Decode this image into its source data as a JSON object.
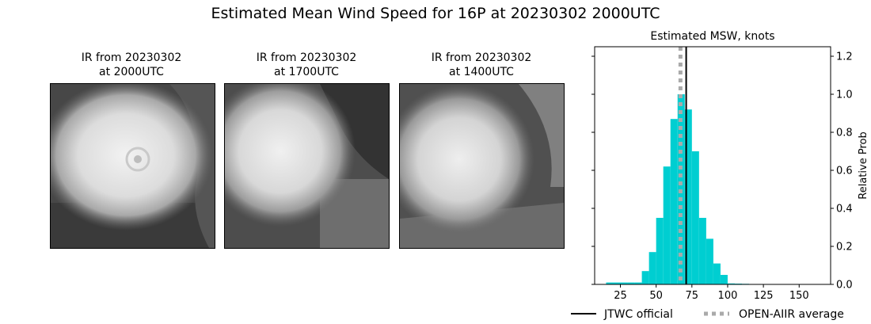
{
  "page": {
    "title": "Estimated Mean Wind Speed for 16P at 20230302 2000UTC"
  },
  "ir_panels": [
    {
      "line1": "IR from 20230302",
      "line2": "at 2000UTC"
    },
    {
      "line1": "IR from 20230302",
      "line2": "at 1700UTC"
    },
    {
      "line1": "IR from 20230302",
      "line2": "at 1400UTC"
    }
  ],
  "chart_data": {
    "type": "bar",
    "title": "Estimated MSW, knots",
    "xlabel": "",
    "ylabel": "Relative Prob",
    "xlim": [
      7,
      172
    ],
    "ylim": [
      0,
      1.25
    ],
    "x_ticks": [
      25,
      50,
      75,
      100,
      125,
      150
    ],
    "y_ticks": [
      0.0,
      0.2,
      0.4,
      0.6,
      0.8,
      1.0,
      1.2
    ],
    "y_tick_labels": [
      "0.0",
      "0.2",
      "0.4",
      "0.6",
      "0.8",
      "1.0",
      "1.2"
    ],
    "y_axis_side": "right",
    "bin_width": 5,
    "bins": [
      {
        "x": 17.5,
        "value": 0.01
      },
      {
        "x": 22.5,
        "value": 0.01
      },
      {
        "x": 27.5,
        "value": 0.01
      },
      {
        "x": 32.5,
        "value": 0.01
      },
      {
        "x": 37.5,
        "value": 0.01
      },
      {
        "x": 42.5,
        "value": 0.07
      },
      {
        "x": 47.5,
        "value": 0.17
      },
      {
        "x": 52.5,
        "value": 0.35
      },
      {
        "x": 57.5,
        "value": 0.62
      },
      {
        "x": 62.5,
        "value": 0.87
      },
      {
        "x": 67.5,
        "value": 1.0
      },
      {
        "x": 72.5,
        "value": 0.92
      },
      {
        "x": 77.5,
        "value": 0.7
      },
      {
        "x": 82.5,
        "value": 0.35
      },
      {
        "x": 87.5,
        "value": 0.24
      },
      {
        "x": 92.5,
        "value": 0.11
      },
      {
        "x": 97.5,
        "value": 0.05
      },
      {
        "x": 102.5,
        "value": 0.005
      },
      {
        "x": 107.5,
        "value": 0.004
      },
      {
        "x": 112.5,
        "value": 0.003
      },
      {
        "x": 117.5,
        "value": 0.002
      },
      {
        "x": 122.5,
        "value": 0.002
      },
      {
        "x": 127.5,
        "value": 0.002
      },
      {
        "x": 132.5,
        "value": 0.001
      },
      {
        "x": 137.5,
        "value": 0.001
      },
      {
        "x": 142.5,
        "value": 0.001
      },
      {
        "x": 147.5,
        "value": 0.001
      },
      {
        "x": 152.5,
        "value": 0.001
      },
      {
        "x": 157.5,
        "value": 0.001
      },
      {
        "x": 162.5,
        "value": 0.001
      },
      {
        "x": 167.5,
        "value": 0.001
      }
    ],
    "bar_color": "#00CED1",
    "vlines": [
      {
        "name": "JTWC official",
        "x": 71,
        "color": "#000000",
        "style": "solid"
      },
      {
        "name": "OPEN-AIIR average",
        "x": 67,
        "color": "#aaaaaa",
        "style": "dotted"
      }
    ],
    "legend": [
      {
        "label": "JTWC official",
        "style": "solid",
        "color": "#000000"
      },
      {
        "label": "OPEN-AIIR average",
        "style": "dotted",
        "color": "#aaaaaa"
      }
    ],
    "legend_placement": "bottom"
  }
}
